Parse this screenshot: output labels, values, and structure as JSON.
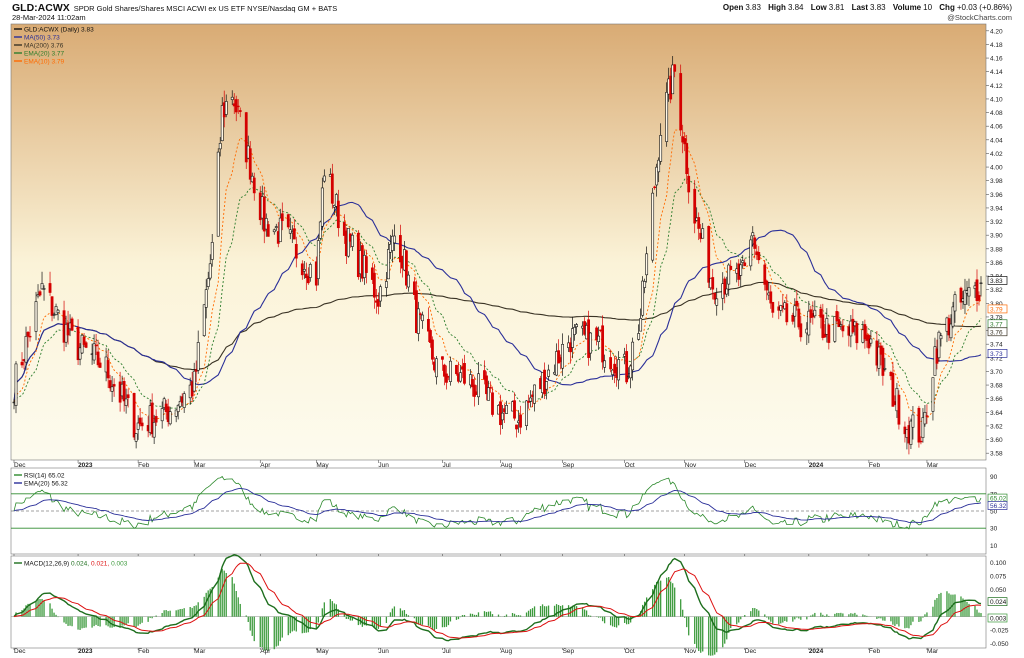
{
  "header": {
    "symbol": "GLD:ACWX",
    "description": "SPDR Gold Shares/Shares MSCI ACWI ex US ETF  NYSE/Nasdaq GM + BATS",
    "date": "28-Mar-2024 11:02am",
    "watermark": "@StockCharts.com",
    "ohlc": {
      "open_label": "Open",
      "open": "3.83",
      "high_label": "High",
      "high": "3.84",
      "low_label": "Low",
      "low": "3.81",
      "last_label": "Last",
      "last": "3.83",
      "volume_label": "Volume",
      "volume": "10",
      "chg_label": "Chg",
      "chg": "+0.03 (+0.86%)"
    }
  },
  "colors": {
    "panel_top": "#d9ab74",
    "panel_mid": "#fbf3d8",
    "panel_bottom": "#fdfbee",
    "up": "#111111",
    "down": "#d40000",
    "ma50": "#2a2f99",
    "ma200": "#3a3325",
    "ema20": "#2d7d2d",
    "ema10": "#ff6a00",
    "rsi": "#2d8a2d",
    "macd_line": "#1d6e1d",
    "macd_signal": "#dd1111",
    "histogram": "#3c9a3c"
  },
  "price_panel": {
    "legend": [
      "GLD:ACWX (Daily) 3.83",
      "MA(50) 3.73",
      "MA(200) 3.76",
      "EMA(20) 3.77",
      "EMA(10) 3.79"
    ],
    "y_ticks": [
      "4.20",
      "4.18",
      "4.16",
      "4.14",
      "4.12",
      "4.10",
      "4.08",
      "4.06",
      "4.04",
      "4.02",
      "4.00",
      "3.98",
      "3.96",
      "3.94",
      "3.92",
      "3.90",
      "3.88",
      "3.86",
      "3.84",
      "3.82",
      "3.80",
      "3.78",
      "3.76",
      "3.74",
      "3.72",
      "3.70",
      "3.68",
      "3.66",
      "3.64",
      "3.62",
      "3.60",
      "3.58"
    ],
    "end_labels": [
      "3.83",
      "3.79",
      "3.77",
      "3.76",
      "3.73"
    ]
  },
  "rsi_panel": {
    "legend": [
      "RSI(14) 65.02",
      "EMA(20) 56.32"
    ],
    "y_ticks": [
      "90",
      "70",
      "50",
      "30",
      "10"
    ],
    "end_labels": [
      "65.02",
      "56.32"
    ]
  },
  "macd_panel": {
    "legend_name": "MACD(12,26,9)",
    "legend_values": [
      "0.024,",
      "0.021,",
      "0.003"
    ],
    "y_ticks": [
      "0.100",
      "0.075",
      "0.050",
      "0.025",
      "0.000",
      "-0.025",
      "-0.050"
    ],
    "end_labels": [
      "0.024",
      "0.003"
    ]
  },
  "x_axis": {
    "labels": [
      "Dec",
      "2023",
      "Feb",
      "Mar",
      "Apr",
      "May",
      "Jun",
      "Jul",
      "Aug",
      "Sep",
      "Oct",
      "Nov",
      "Dec",
      "2024",
      "Feb",
      "Mar"
    ]
  },
  "chart_data": {
    "type": "candlestick",
    "y_range": [
      3.57,
      4.21
    ],
    "x_range": [
      "2022-12-01",
      "2024-03-28"
    ],
    "scale": "linear",
    "grid": false,
    "anchors": [
      {
        "date": "2022-12-01",
        "close": 3.68
      },
      {
        "date": "2022-12-15",
        "close": 3.82
      },
      {
        "date": "2022-12-31",
        "close": 3.74
      },
      {
        "date": "2023-01-15",
        "close": 3.71
      },
      {
        "date": "2023-01-31",
        "close": 3.62
      },
      {
        "date": "2023-02-15",
        "close": 3.64
      },
      {
        "date": "2023-03-01",
        "close": 3.68
      },
      {
        "date": "2023-03-10",
        "close": 3.88
      },
      {
        "date": "2023-03-15",
        "close": 4.08
      },
      {
        "date": "2023-03-20",
        "close": 4.11
      },
      {
        "date": "2023-04-05",
        "close": 3.92
      },
      {
        "date": "2023-04-15",
        "close": 3.9
      },
      {
        "date": "2023-05-01",
        "close": 3.84
      },
      {
        "date": "2023-05-05",
        "close": 4.0
      },
      {
        "date": "2023-05-15",
        "close": 3.9
      },
      {
        "date": "2023-06-01",
        "close": 3.81
      },
      {
        "date": "2023-06-10",
        "close": 3.91
      },
      {
        "date": "2023-06-20",
        "close": 3.78
      },
      {
        "date": "2023-07-01",
        "close": 3.7
      },
      {
        "date": "2023-07-15",
        "close": 3.69
      },
      {
        "date": "2023-08-01",
        "close": 3.64
      },
      {
        "date": "2023-08-10",
        "close": 3.63
      },
      {
        "date": "2023-08-25",
        "close": 3.7
      },
      {
        "date": "2023-09-05",
        "close": 3.75
      },
      {
        "date": "2023-09-20",
        "close": 3.74
      },
      {
        "date": "2023-10-03",
        "close": 3.7
      },
      {
        "date": "2023-10-10",
        "close": 3.78
      },
      {
        "date": "2023-10-20",
        "close": 4.06
      },
      {
        "date": "2023-10-27",
        "close": 4.14
      },
      {
        "date": "2023-11-05",
        "close": 3.94
      },
      {
        "date": "2023-11-15",
        "close": 3.83
      },
      {
        "date": "2023-12-01",
        "close": 3.84
      },
      {
        "date": "2023-12-05",
        "close": 3.9
      },
      {
        "date": "2023-12-15",
        "close": 3.78
      },
      {
        "date": "2024-01-01",
        "close": 3.77
      },
      {
        "date": "2024-01-15",
        "close": 3.76
      },
      {
        "date": "2024-02-01",
        "close": 3.75
      },
      {
        "date": "2024-02-20",
        "close": 3.62
      },
      {
        "date": "2024-02-28",
        "close": 3.61
      },
      {
        "date": "2024-03-05",
        "close": 3.73
      },
      {
        "date": "2024-03-15",
        "close": 3.79
      },
      {
        "date": "2024-03-28",
        "close": 3.83
      }
    ],
    "last": {
      "open": 3.83,
      "high": 3.84,
      "low": 3.81,
      "close": 3.83
    },
    "indicators": {
      "MA50": 3.73,
      "MA200": 3.76,
      "EMA20": 3.77,
      "EMA10": 3.79,
      "RSI14": 65.02,
      "RSI_EMA20": 56.32,
      "MACD": 0.024,
      "MACD_signal": 0.021,
      "MACD_histogram": 0.003
    }
  }
}
